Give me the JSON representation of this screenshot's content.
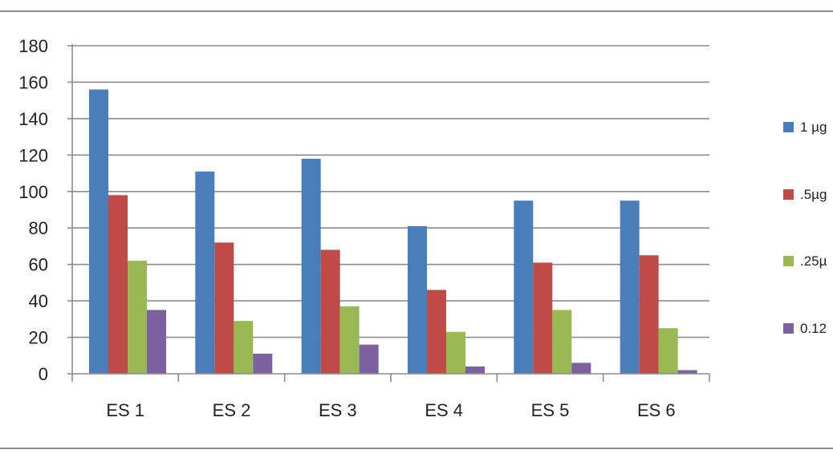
{
  "chart_data": {
    "type": "bar",
    "categories": [
      "ES 1",
      "ES 2",
      "ES 3",
      "ES 4",
      "ES 5",
      "ES 6"
    ],
    "series": [
      {
        "name": "1 µg",
        "color": "#4a7ebb",
        "values": [
          156,
          111,
          118,
          81,
          95,
          95
        ]
      },
      {
        "name": ".5µg",
        "color": "#be4b48",
        "values": [
          98,
          72,
          68,
          46,
          61,
          65
        ]
      },
      {
        "name": ".25µ",
        "color": "#98b954",
        "values": [
          62,
          29,
          37,
          23,
          35,
          25
        ]
      },
      {
        "name": "0.12",
        "color": "#7d60a0",
        "values": [
          35,
          11,
          16,
          4,
          6,
          2
        ]
      }
    ],
    "yticks": [
      "0",
      "20",
      "40",
      "60",
      "80",
      "100",
      "120",
      "140",
      "160",
      "180"
    ],
    "ylim": [
      0,
      180
    ],
    "grid": true,
    "legend_position": "right",
    "title": "",
    "xlabel": "",
    "ylabel": ""
  }
}
